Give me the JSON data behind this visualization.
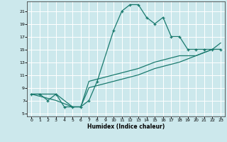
{
  "xlabel": "Humidex (Indice chaleur)",
  "ylabel": "",
  "bg_color": "#cce8ec",
  "grid_color": "#ffffff",
  "line_color": "#1a7a6e",
  "xlim": [
    -0.5,
    23.5
  ],
  "ylim": [
    4.5,
    22.5
  ],
  "xticks": [
    0,
    1,
    2,
    3,
    4,
    5,
    6,
    7,
    8,
    9,
    10,
    11,
    12,
    13,
    14,
    15,
    16,
    17,
    18,
    19,
    20,
    21,
    22,
    23
  ],
  "yticks": [
    5,
    7,
    9,
    11,
    13,
    15,
    17,
    19,
    21
  ],
  "curve1": {
    "x": [
      0,
      1,
      2,
      3,
      4,
      5,
      6,
      7,
      8,
      10,
      11,
      12,
      13,
      14,
      15,
      16,
      17,
      18,
      19,
      20,
      21,
      22,
      23
    ],
    "y": [
      8,
      8,
      7,
      8,
      6,
      6,
      6,
      7,
      10,
      18,
      21,
      22,
      22,
      20,
      19,
      20,
      17,
      17,
      15,
      15,
      15,
      15,
      15
    ]
  },
  "curve2": {
    "x": [
      0,
      3,
      5,
      6,
      7,
      10,
      13,
      15,
      18,
      20,
      22,
      23
    ],
    "y": [
      8,
      8,
      6,
      6,
      10,
      11,
      12,
      13,
      14,
      14,
      15,
      15
    ]
  },
  "curve3": {
    "x": [
      0,
      3,
      5,
      6,
      7,
      10,
      13,
      15,
      18,
      20,
      22,
      23
    ],
    "y": [
      8,
      7,
      6,
      6,
      9,
      10,
      11,
      12,
      13,
      14,
      15,
      16
    ]
  }
}
